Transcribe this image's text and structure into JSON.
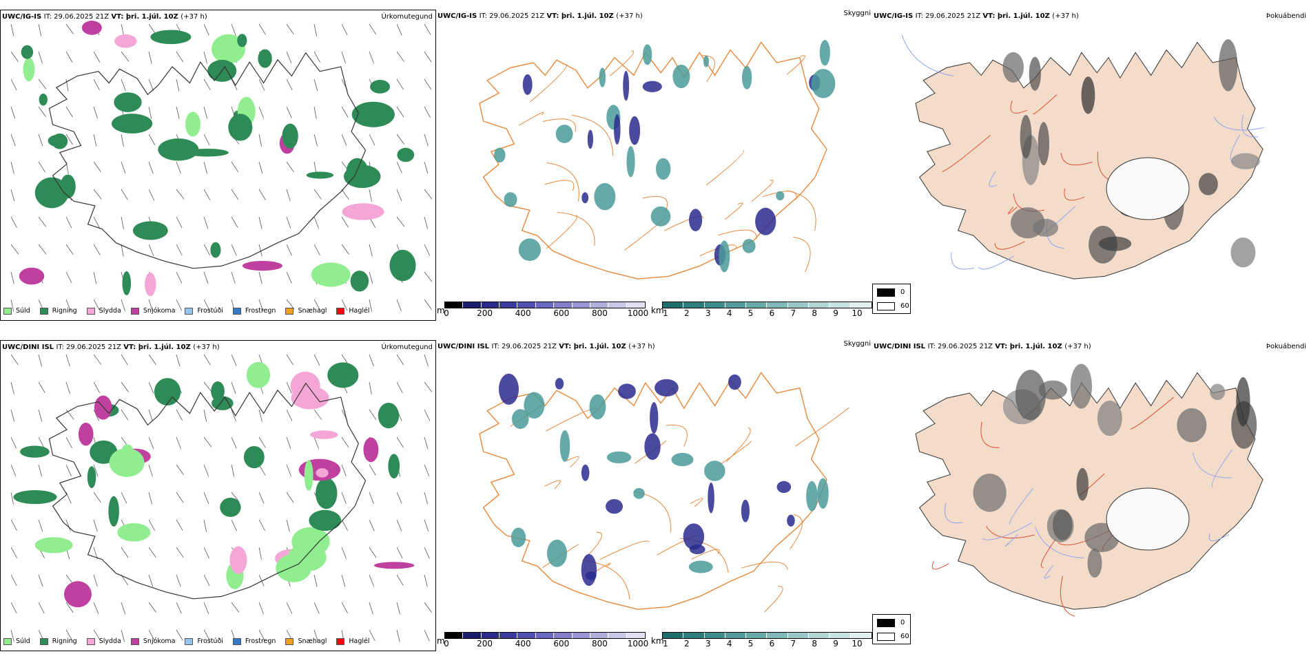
{
  "rows": [
    {
      "model": "UWC/IG-IS",
      "it": "IT: 29.06.2025 21Z",
      "vt_label": "VT:",
      "vt": "þri. 1.júl. 10Z",
      "lead": "(+37 h)"
    },
    {
      "model": "UWC/DINI ISL",
      "it": "IT: 29.06.2025 21Z",
      "vt_label": "VT:",
      "vt": "þri. 1.júl. 10Z",
      "lead": "(+37 h)"
    }
  ],
  "panels": {
    "precip_title": "Úrkomutegund",
    "visibility_title": "Skyggni",
    "fog_title": "Þokuábendi"
  },
  "precip_legend": [
    {
      "label": "Súld",
      "color": "#90ee90"
    },
    {
      "label": "Rigning",
      "color": "#2e8b57"
    },
    {
      "label": "Slydda",
      "color": "#f4a6d7"
    },
    {
      "label": "Snjókoma",
      "color": "#c040a0"
    },
    {
      "label": "Frostúði",
      "color": "#99c4f0"
    },
    {
      "label": "Frostregn",
      "color": "#3a78c8"
    },
    {
      "label": "Snæhagl",
      "color": "#f0a020"
    },
    {
      "label": "Haglél",
      "color": "#e01010"
    }
  ],
  "vis_m_scale": {
    "unit": "m",
    "ticks": [
      "0",
      "200",
      "400",
      "600",
      "800",
      "1000"
    ],
    "colors": [
      "#000000",
      "#1a1a6e",
      "#2a2a8e",
      "#3c3ca0",
      "#5050b0",
      "#6868be",
      "#8080c8",
      "#9898d4",
      "#b0b0de",
      "#c8c8e8",
      "#e0e0f2"
    ]
  },
  "vis_km_scale": {
    "unit": "km",
    "ticks": [
      "1",
      "2",
      "3",
      "4",
      "5",
      "6",
      "7",
      "8",
      "9",
      "10"
    ],
    "colors": [
      "#1f6e6e",
      "#2f7e7e",
      "#3f8e8e",
      "#559d9d",
      "#6aacac",
      "#80baba",
      "#98c8c8",
      "#b0d6d6",
      "#c8e4e4",
      "#e0f0f0"
    ]
  },
  "fog_legend": {
    "high": "0",
    "low": "60",
    "high_color": "#000000",
    "low_color": "#ffffff"
  },
  "map_colors": {
    "rain": "#2e8b57",
    "drizzle": "#90ee90",
    "sleet": "#f4a6d7",
    "snow": "#c040a0",
    "roads": "#e8883a",
    "land_fog": "#f4dccb",
    "roads_fog": "#e05030",
    "rivers": "#8fa6ee",
    "vis_blue": "#2a2a8e",
    "vis_teal": "#4a9a9a"
  }
}
